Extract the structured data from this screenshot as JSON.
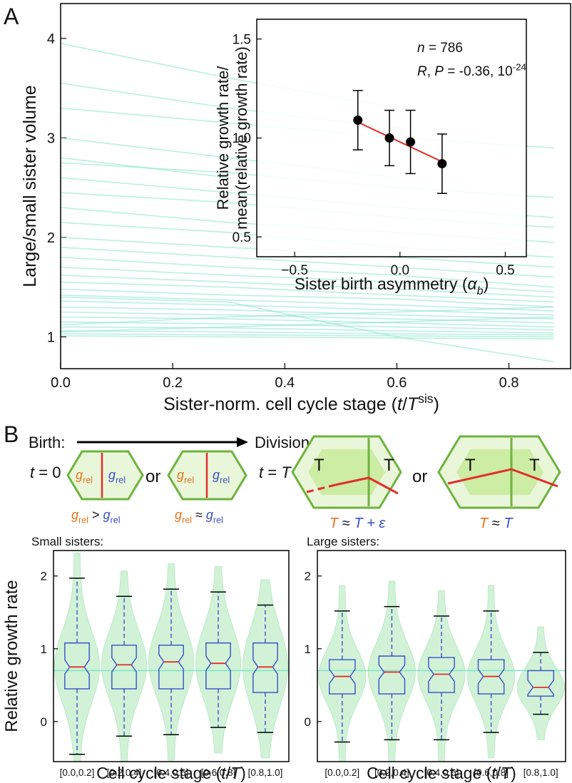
{
  "chart_data": [
    {
      "type": "line",
      "panel": "A",
      "y_label": "Large/small sister volume",
      "x_label": [
        "Sister-norm. cell cycle stage (",
        "t",
        "/",
        "T",
        "sis",
        ")"
      ],
      "color": "#7fe3c6",
      "xlim": [
        0,
        0.91
      ],
      "ylim": [
        0.68,
        4.35
      ],
      "xticks": [
        {
          "value": 0,
          "label": "0.0"
        },
        0.2,
        0.4,
        0.6,
        0.8
      ],
      "yticks": [
        1,
        2,
        3,
        4
      ],
      "x": [
        0,
        0.3,
        0.6,
        0.88
      ],
      "series": [
        {
          "values": [
            3.95,
            3.6,
            3.3,
            null
          ]
        },
        {
          "values": [
            3.55,
            3.3,
            3.1,
            null
          ]
        },
        {
          "values": [
            3.3,
            3.15,
            3.0,
            2.9
          ]
        },
        {
          "values": [
            3.0,
            2.8,
            2.6,
            null
          ]
        },
        {
          "values": [
            2.75,
            2.65,
            2.5,
            2.4
          ]
        },
        {
          "values": [
            2.6,
            2.45,
            2.3,
            2.2
          ]
        },
        {
          "values": [
            2.45,
            2.35,
            2.2,
            2.1
          ]
        },
        {
          "values": [
            2.3,
            2.15,
            2.05,
            1.95
          ]
        },
        {
          "values": [
            2.15,
            2.05,
            1.9,
            1.8
          ]
        },
        {
          "values": [
            2.0,
            1.9,
            1.8,
            1.7
          ]
        },
        {
          "values": [
            1.9,
            1.8,
            1.7,
            1.6
          ]
        },
        {
          "values": [
            1.8,
            1.7,
            1.62,
            1.5
          ]
        },
        {
          "values": [
            1.7,
            1.62,
            1.55,
            1.45
          ]
        },
        {
          "values": [
            1.62,
            1.55,
            1.48,
            1.4
          ]
        },
        {
          "values": [
            1.55,
            1.5,
            1.42,
            1.35
          ]
        },
        {
          "values": [
            1.48,
            1.42,
            1.38,
            1.3
          ]
        },
        {
          "values": [
            1.42,
            1.37,
            1.32,
            1.26
          ]
        },
        {
          "values": [
            1.36,
            1.32,
            1.27,
            1.22
          ]
        },
        {
          "values": [
            1.3,
            1.27,
            1.22,
            1.18
          ]
        },
        {
          "values": [
            1.25,
            1.22,
            1.18,
            1.14
          ]
        },
        {
          "values": [
            1.2,
            1.18,
            1.14,
            1.1
          ]
        },
        {
          "values": [
            1.15,
            1.13,
            1.1,
            1.07
          ]
        },
        {
          "values": [
            1.1,
            1.09,
            1.06,
            1.04
          ]
        },
        {
          "values": [
            1.06,
            1.05,
            1.03,
            1.02
          ]
        },
        {
          "values": [
            1.03,
            1.02,
            1.01,
            1.0
          ]
        },
        {
          "values": [
            1.01,
            1.0,
            0.99,
            0.98
          ]
        },
        {
          "values": [
            1.12,
            1.2,
            1.25,
            1.3
          ]
        },
        {
          "values": [
            1.05,
            1.1,
            1.15,
            1.2
          ]
        },
        {
          "values": [
            2.8,
            2.6,
            null,
            null
          ]
        },
        {
          "values": [
            1.4,
            1.35,
            1.0,
            0.75
          ]
        }
      ]
    },
    {
      "type": "scatter",
      "y_label": [
        "Relative growth rate/",
        "mean(relative growth rate)"
      ],
      "x_label": [
        "Sister birth asymmetry (",
        "α",
        "b",
        ")"
      ],
      "n_label": [
        "n",
        " = 786"
      ],
      "r_label": [
        "R",
        ",  ",
        "P",
        " = -0.36, 10",
        "-24"
      ],
      "xlim": [
        -0.68,
        0.6
      ],
      "ylim": [
        0.4,
        1.6
      ],
      "xticks": [
        {
          "value": -0.5,
          "label": "−0.5"
        },
        {
          "value": 0,
          "label": "0.0"
        },
        0.5
      ],
      "yticks": [
        0.5,
        {
          "value": 1,
          "label": "1.0"
        },
        1.5
      ],
      "x": [
        -0.2,
        -0.05,
        0.05,
        0.2
      ],
      "values": [
        1.09,
        1.0,
        0.98,
        0.87
      ],
      "errors": [
        0.15,
        0.14,
        0.16,
        0.15
      ],
      "fit": {
        "x": [
          -0.2,
          0.2
        ],
        "y": [
          1.08,
          0.88
        ],
        "color": "#e0302a"
      }
    },
    {
      "type": "violin",
      "title": "Small sisters:",
      "y_label": "Relative growth rate",
      "x_label": [
        "Cell cycle stage (",
        "t",
        "/",
        "T",
        ")"
      ],
      "categories": [
        "[0.0,0.2]",
        "[0.2,0.4]",
        "[0.4,0.6]",
        "[0.6,0.8]",
        "[0.8,1.0]"
      ],
      "median": [
        0.75,
        0.78,
        0.82,
        0.8,
        0.75
      ],
      "q1": [
        0.45,
        0.45,
        0.45,
        0.45,
        0.4
      ],
      "q3": [
        1.08,
        1.05,
        1.05,
        1.08,
        1.08
      ],
      "whisker_low": [
        -0.45,
        -0.2,
        -0.18,
        -0.08,
        -0.15
      ],
      "whisker_high": [
        1.97,
        1.72,
        1.82,
        1.78,
        1.6
      ],
      "hline": 0.7,
      "ylim": [
        -0.55,
        2.35
      ],
      "yticks": [
        0,
        1,
        2
      ]
    },
    {
      "type": "violin",
      "title": "Large sisters:",
      "x_label": [
        "Cell cycle stage (",
        "t",
        "/",
        "T",
        ")"
      ],
      "categories": [
        "[0.0,0.2]",
        "[0.2,0.4]",
        "[0.4,0.6]",
        "[0.6,0.8]",
        "[0.8,1.0]"
      ],
      "median": [
        0.62,
        0.68,
        0.65,
        0.62,
        0.47
      ],
      "q1": [
        0.38,
        0.38,
        0.4,
        0.38,
        0.35
      ],
      "q3": [
        0.85,
        0.9,
        0.88,
        0.85,
        0.7
      ],
      "whisker_low": [
        -0.28,
        -0.25,
        -0.25,
        -0.15,
        0.1
      ],
      "whisker_high": [
        1.52,
        1.58,
        1.45,
        1.52,
        0.95
      ],
      "hline": 0.7,
      "ylim": [
        -0.55,
        2.35
      ],
      "yticks": [
        0,
        1,
        2
      ]
    }
  ],
  "diagram": {
    "panel": "B",
    "birth": "Birth:",
    "division": "Division:",
    "t0": [
      "t",
      " = 0"
    ],
    "tT": [
      "t",
      " = ",
      "T"
    ],
    "or": [
      "or",
      "or"
    ],
    "hex1": [
      [
        "g",
        "rel"
      ],
      [
        "g",
        "rel"
      ]
    ],
    "hex2": [
      [
        "g",
        "rel"
      ],
      [
        "g",
        "rel"
      ]
    ],
    "cmp1": [
      "g",
      "rel",
      " > ",
      "g",
      "rel"
    ],
    "cmp2": [
      "g",
      "rel",
      " ≈ ",
      "g",
      "rel"
    ],
    "hex3": [
      "T",
      "T"
    ],
    "hex4": [
      "T",
      "T"
    ],
    "cmp3": [
      "T",
      " ≈ ",
      "T",
      " + ε"
    ],
    "cmp4": [
      "T",
      " ≈ ",
      "T"
    ]
  }
}
